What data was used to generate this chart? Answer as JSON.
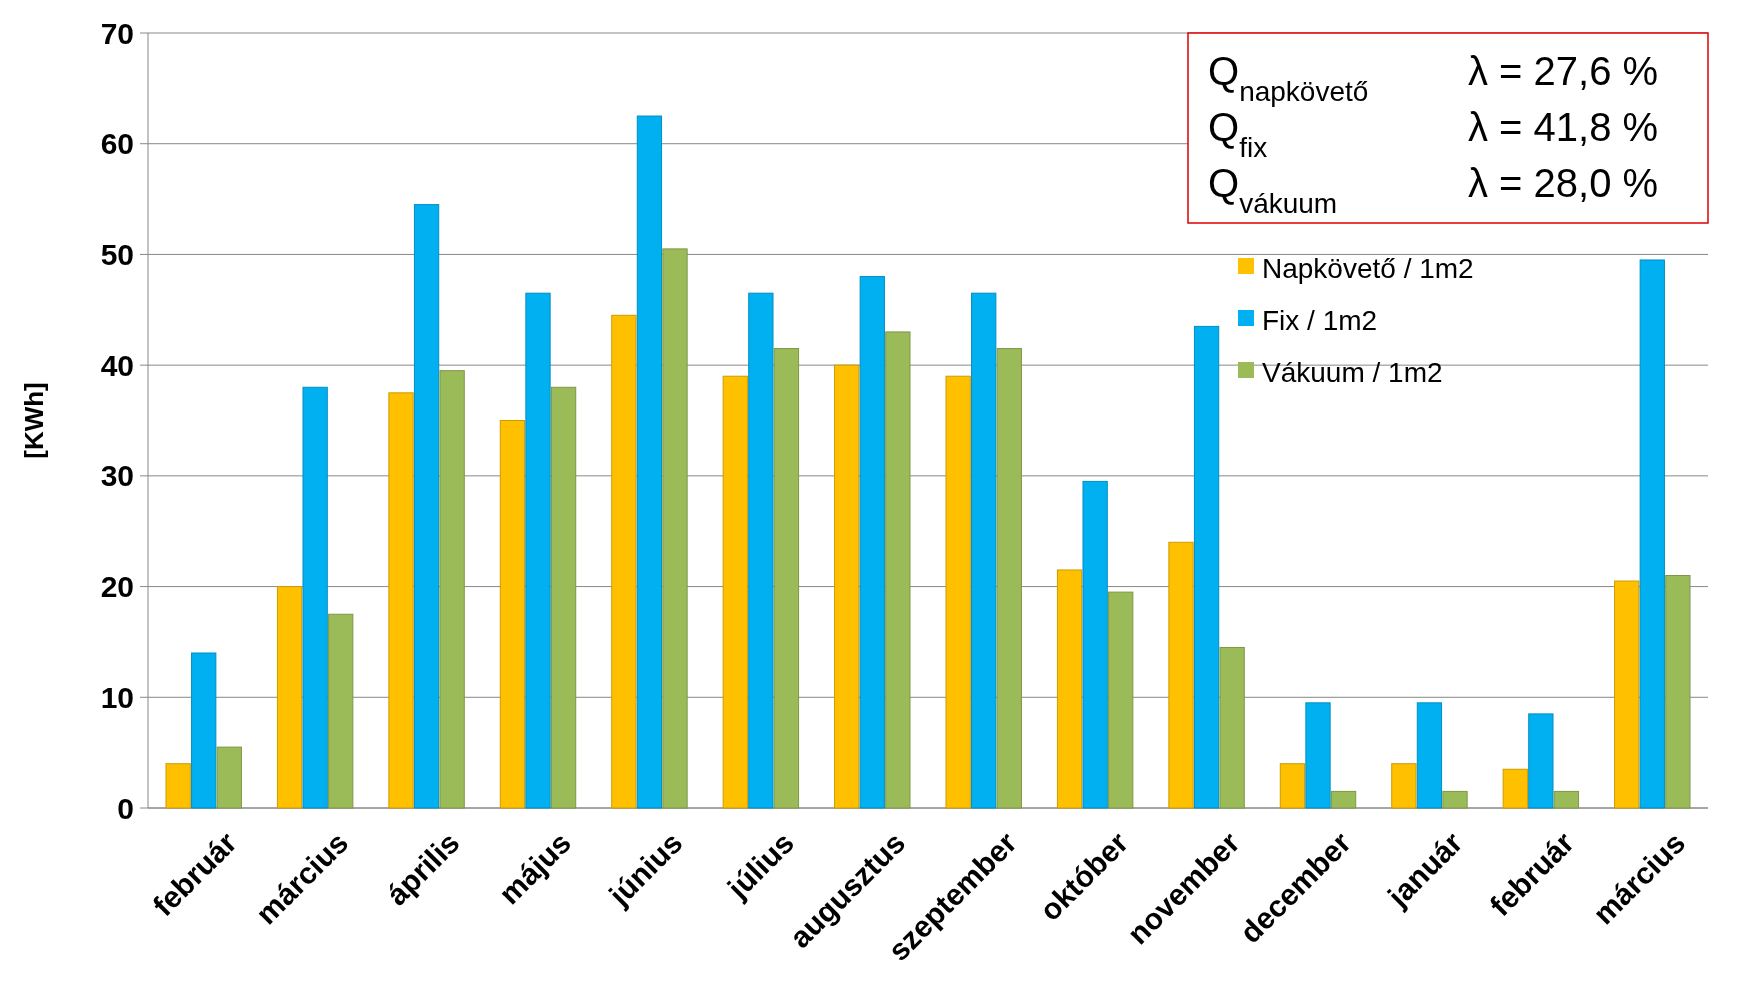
{
  "chart_data": {
    "type": "bar",
    "ylabel": "[KWh]",
    "categories": [
      "február",
      "március",
      "április",
      "május",
      "június",
      "július",
      "augusztus",
      "szeptember",
      "október",
      "november",
      "december",
      "január",
      "február",
      "március"
    ],
    "series": [
      {
        "name": "Napkövető / 1m2",
        "color": "#ffc000",
        "values": [
          4,
          20,
          37.5,
          35,
          44.5,
          39,
          40,
          39,
          21.5,
          24,
          4,
          4,
          3.5,
          20.5
        ]
      },
      {
        "name": "Fix / 1m2",
        "color": "#00b0f0",
        "values": [
          14,
          38,
          54.5,
          46.5,
          62.5,
          46.5,
          48,
          46.5,
          29.5,
          43.5,
          9.5,
          9.5,
          8.5,
          49.5
        ]
      },
      {
        "name": "Vákuum / 1m2",
        "color": "#9bbb59",
        "values": [
          5.5,
          17.5,
          39.5,
          38,
          50.5,
          41.5,
          43,
          41.5,
          19.5,
          14.5,
          1.5,
          1.5,
          1.5,
          21
        ]
      }
    ],
    "ylim": [
      0,
      70
    ],
    "yticks": [
      0,
      10,
      20,
      30,
      40,
      50,
      60,
      70
    ],
    "grid": "y",
    "legend": "right",
    "annotations": [
      "Q$_{napkövető}$",
      "λ = 27,6 %",
      "Q$_{fix}$",
      "λ = 41,8 %",
      "Q$_{vákuum}$",
      "λ = 28,0 %"
    ]
  }
}
